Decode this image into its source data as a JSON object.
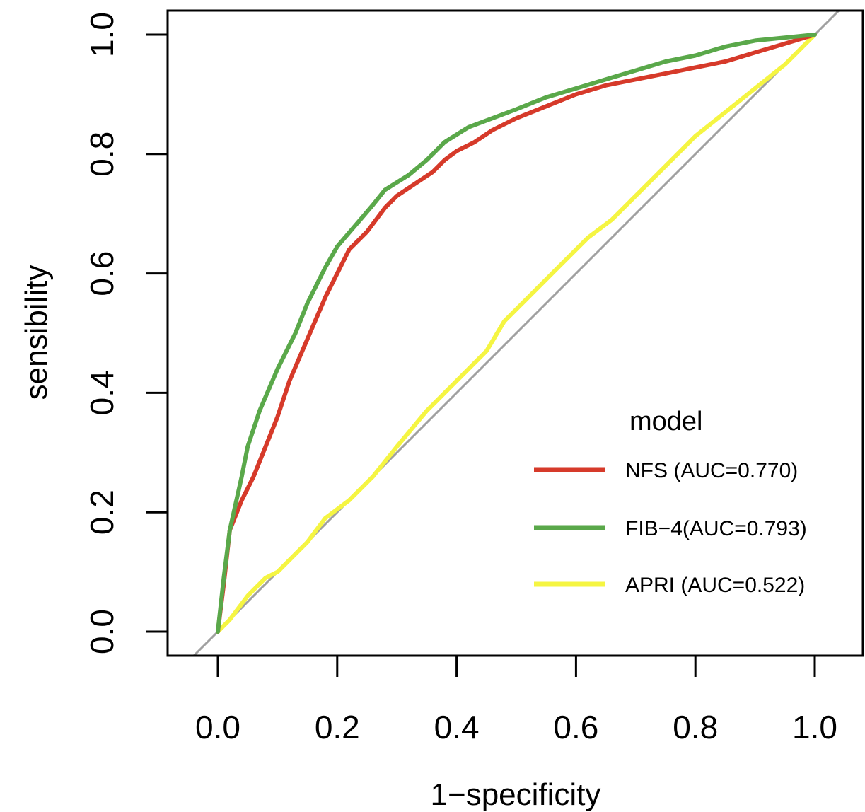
{
  "chart_data": {
    "type": "line",
    "title": "",
    "xlabel": "1−specificity",
    "ylabel": "sensibility",
    "xlim": [
      0,
      1
    ],
    "ylim": [
      0,
      1
    ],
    "x_ticks": [
      "0.0",
      "0.2",
      "0.4",
      "0.6",
      "0.8",
      "1.0"
    ],
    "y_ticks": [
      "0.0",
      "0.2",
      "0.4",
      "0.6",
      "0.8",
      "1.0"
    ],
    "grid": false,
    "reference_line": {
      "description": "diagonal",
      "color": "#a0a0a0"
    },
    "legend": {
      "title": "model",
      "placement": "bottom-right",
      "entries": [
        {
          "label": "NFS (AUC=0.770)",
          "color": "#d63a2a"
        },
        {
          "label": "FIB−4(AUC=0.793)",
          "color": "#5aa84a"
        },
        {
          "label": "APRI (AUC=0.522)",
          "color": "#f5f542"
        }
      ]
    },
    "series": [
      {
        "name": "NFS (AUC=0.770)",
        "color": "#d63a2a",
        "points": [
          [
            0,
            0
          ],
          [
            0.01,
            0.08
          ],
          [
            0.02,
            0.17
          ],
          [
            0.04,
            0.22
          ],
          [
            0.06,
            0.26
          ],
          [
            0.08,
            0.31
          ],
          [
            0.1,
            0.36
          ],
          [
            0.12,
            0.42
          ],
          [
            0.15,
            0.49
          ],
          [
            0.18,
            0.56
          ],
          [
            0.2,
            0.6
          ],
          [
            0.22,
            0.64
          ],
          [
            0.25,
            0.67
          ],
          [
            0.28,
            0.71
          ],
          [
            0.3,
            0.73
          ],
          [
            0.33,
            0.75
          ],
          [
            0.36,
            0.77
          ],
          [
            0.38,
            0.79
          ],
          [
            0.4,
            0.805
          ],
          [
            0.43,
            0.82
          ],
          [
            0.46,
            0.84
          ],
          [
            0.5,
            0.86
          ],
          [
            0.55,
            0.88
          ],
          [
            0.6,
            0.9
          ],
          [
            0.65,
            0.915
          ],
          [
            0.7,
            0.925
          ],
          [
            0.75,
            0.935
          ],
          [
            0.8,
            0.945
          ],
          [
            0.85,
            0.955
          ],
          [
            0.9,
            0.97
          ],
          [
            0.95,
            0.985
          ],
          [
            1.0,
            1.0
          ]
        ]
      },
      {
        "name": "FIB−4(AUC=0.793)",
        "color": "#5aa84a",
        "points": [
          [
            0,
            0
          ],
          [
            0.01,
            0.09
          ],
          [
            0.02,
            0.17
          ],
          [
            0.04,
            0.26
          ],
          [
            0.05,
            0.31
          ],
          [
            0.07,
            0.37
          ],
          [
            0.1,
            0.44
          ],
          [
            0.13,
            0.5
          ],
          [
            0.15,
            0.55
          ],
          [
            0.18,
            0.61
          ],
          [
            0.2,
            0.645
          ],
          [
            0.23,
            0.68
          ],
          [
            0.26,
            0.715
          ],
          [
            0.28,
            0.74
          ],
          [
            0.32,
            0.765
          ],
          [
            0.35,
            0.79
          ],
          [
            0.38,
            0.82
          ],
          [
            0.42,
            0.845
          ],
          [
            0.46,
            0.86
          ],
          [
            0.5,
            0.875
          ],
          [
            0.55,
            0.895
          ],
          [
            0.6,
            0.91
          ],
          [
            0.65,
            0.925
          ],
          [
            0.7,
            0.94
          ],
          [
            0.75,
            0.955
          ],
          [
            0.8,
            0.965
          ],
          [
            0.85,
            0.98
          ],
          [
            0.9,
            0.99
          ],
          [
            0.95,
            0.995
          ],
          [
            1.0,
            1.0
          ]
        ]
      },
      {
        "name": "APRI (AUC=0.522)",
        "color": "#f5f542",
        "points": [
          [
            0,
            0
          ],
          [
            0.02,
            0.02
          ],
          [
            0.05,
            0.06
          ],
          [
            0.08,
            0.09
          ],
          [
            0.1,
            0.1
          ],
          [
            0.13,
            0.13
          ],
          [
            0.15,
            0.15
          ],
          [
            0.18,
            0.19
          ],
          [
            0.22,
            0.22
          ],
          [
            0.26,
            0.26
          ],
          [
            0.3,
            0.31
          ],
          [
            0.35,
            0.37
          ],
          [
            0.4,
            0.42
          ],
          [
            0.45,
            0.47
          ],
          [
            0.48,
            0.52
          ],
          [
            0.52,
            0.56
          ],
          [
            0.58,
            0.62
          ],
          [
            0.62,
            0.66
          ],
          [
            0.66,
            0.69
          ],
          [
            0.7,
            0.73
          ],
          [
            0.75,
            0.78
          ],
          [
            0.8,
            0.83
          ],
          [
            0.85,
            0.87
          ],
          [
            0.9,
            0.91
          ],
          [
            0.95,
            0.95
          ],
          [
            1.0,
            1.0
          ]
        ]
      }
    ]
  }
}
